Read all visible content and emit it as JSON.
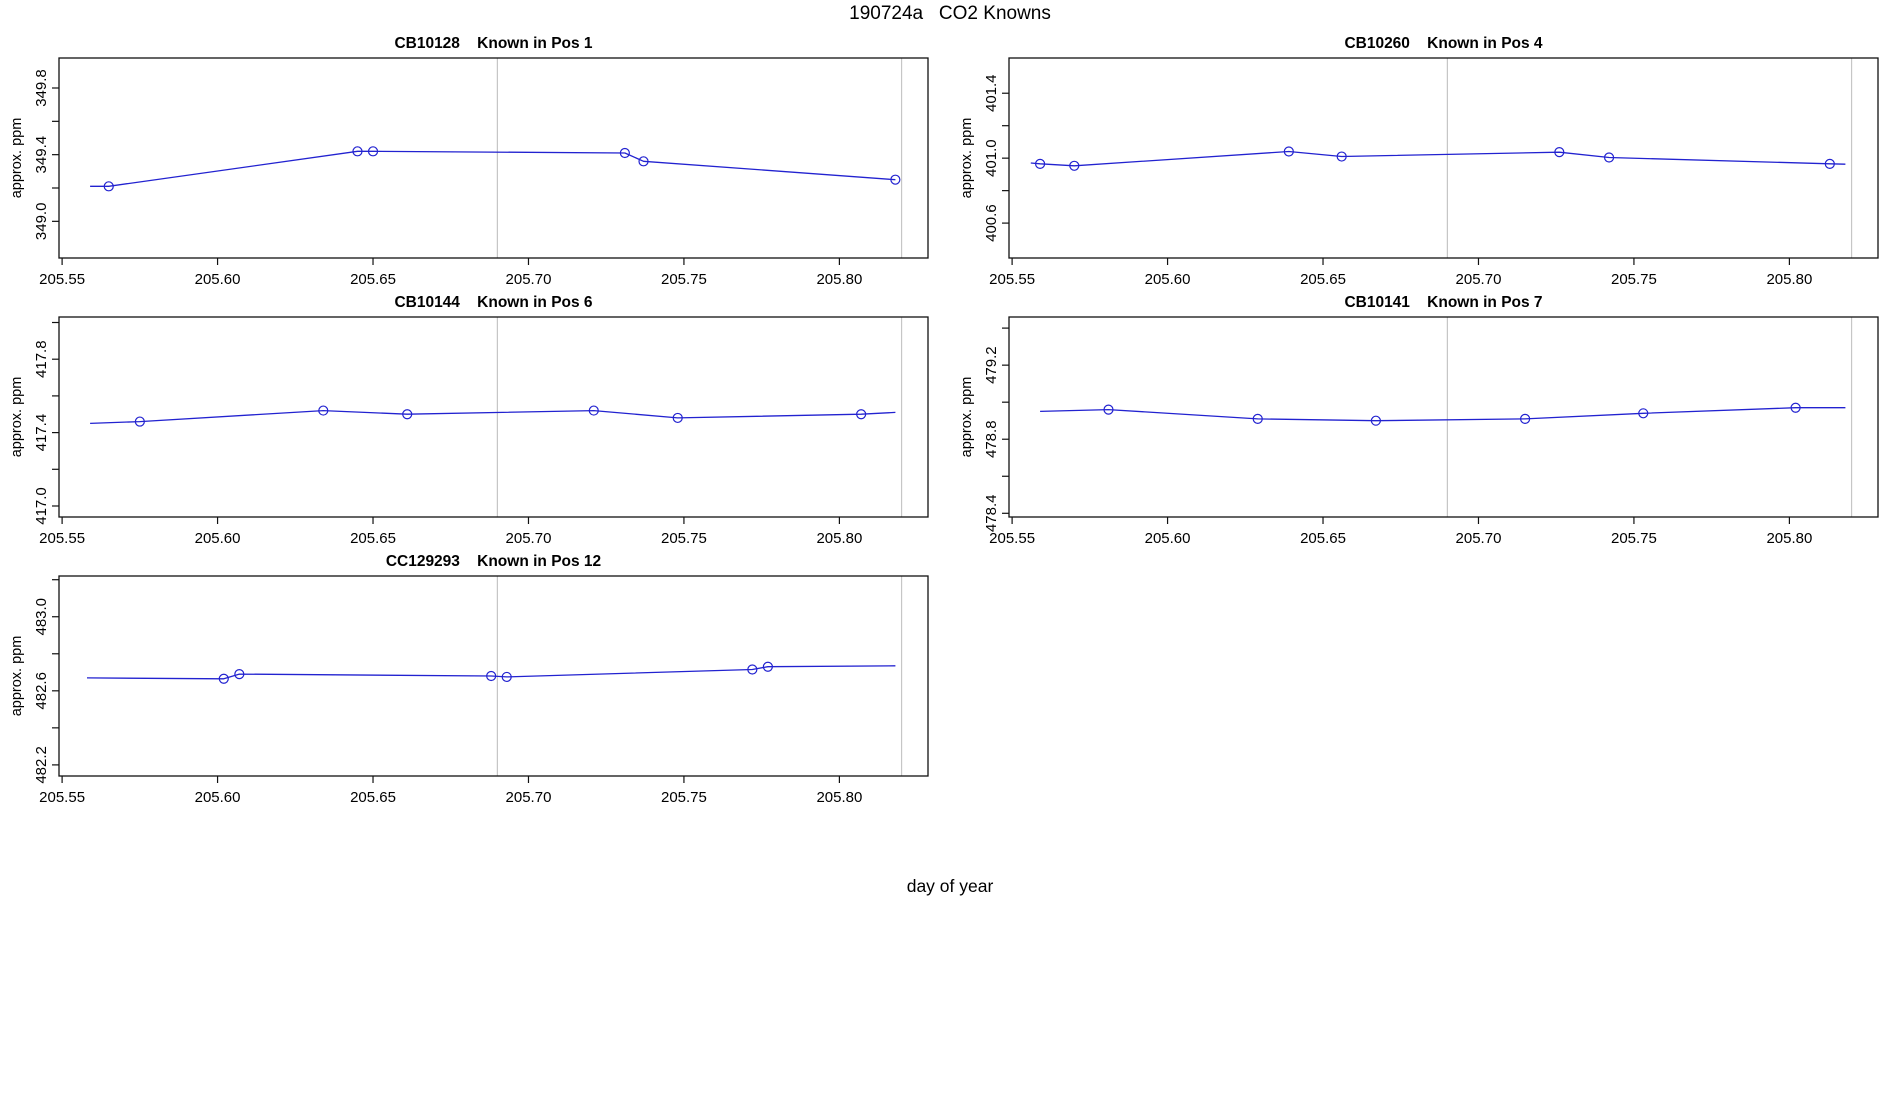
{
  "header": {
    "title": "190724a   CO2 Knowns"
  },
  "footer": {
    "xlabel": "day of year"
  },
  "axis": {
    "ylabel": "approx. ppm",
    "xtick_labels": [
      "205.55",
      "205.60",
      "205.65",
      "205.70",
      "205.75",
      "205.80"
    ]
  },
  "colors": {
    "line": "#2222d0",
    "marker": "#2222d0",
    "vline": "#c6c6c6",
    "axis": "#111111",
    "text": "#000000",
    "background": "#ffffff"
  },
  "chart_data": [
    {
      "type": "line",
      "id": "CB10128",
      "position_label": "Known in Pos 1",
      "title": "CB10128    Known in Pos 1",
      "xlabel": "day of year",
      "ylabel": "approx. ppm",
      "xlim": [
        205.549,
        205.8285
      ],
      "ylim": [
        348.78,
        349.98
      ],
      "xticks": [
        205.55,
        205.6,
        205.65,
        205.7,
        205.75,
        205.8
      ],
      "yticks": [
        349.0,
        349.2,
        349.4,
        349.6,
        349.8
      ],
      "yticks_labeled": [
        349.0,
        349.4,
        349.8
      ],
      "vlines": [
        205.69,
        205.82
      ],
      "line": [
        [
          205.559,
          349.21
        ],
        [
          205.565,
          349.21
        ],
        [
          205.645,
          349.42
        ],
        [
          205.65,
          349.42
        ],
        [
          205.731,
          349.41
        ],
        [
          205.737,
          349.36
        ],
        [
          205.818,
          349.25
        ]
      ],
      "markers": [
        [
          205.565,
          349.21
        ],
        [
          205.645,
          349.42
        ],
        [
          205.65,
          349.42
        ],
        [
          205.731,
          349.41
        ],
        [
          205.737,
          349.36
        ],
        [
          205.818,
          349.25
        ]
      ]
    },
    {
      "type": "line",
      "id": "CB10260",
      "position_label": "Known in Pos 4",
      "title": "CB10260    Known in Pos 4",
      "xlabel": "day of year",
      "ylabel": "approx. ppm",
      "xlim": [
        205.549,
        205.8285
      ],
      "ylim": [
        400.385,
        401.617
      ],
      "xticks": [
        205.55,
        205.6,
        205.65,
        205.7,
        205.75,
        205.8
      ],
      "yticks": [
        400.6,
        400.8,
        401.0,
        401.2,
        401.4
      ],
      "yticks_labeled": [
        400.6,
        401.0,
        401.4
      ],
      "vlines": [
        205.69,
        205.82
      ],
      "line": [
        [
          205.556,
          400.97
        ],
        [
          205.559,
          400.965
        ],
        [
          205.57,
          400.953
        ],
        [
          205.639,
          401.041
        ],
        [
          205.656,
          401.01
        ],
        [
          205.726,
          401.037
        ],
        [
          205.742,
          401.004
        ],
        [
          205.813,
          400.965
        ],
        [
          205.818,
          400.963
        ]
      ],
      "markers": [
        [
          205.559,
          400.965
        ],
        [
          205.57,
          400.953
        ],
        [
          205.639,
          401.041
        ],
        [
          205.656,
          401.01
        ],
        [
          205.726,
          401.037
        ],
        [
          205.742,
          401.004
        ],
        [
          205.813,
          400.965
        ]
      ]
    },
    {
      "type": "line",
      "id": "CB10144",
      "position_label": "Known in Pos 6",
      "title": "CB10144    Known in Pos 6",
      "xlabel": "day of year",
      "ylabel": "approx. ppm",
      "xlim": [
        205.549,
        205.8285
      ],
      "ylim": [
        416.94,
        418.03
      ],
      "xticks": [
        205.55,
        205.6,
        205.65,
        205.7,
        205.75,
        205.8
      ],
      "yticks": [
        417.0,
        417.2,
        417.4,
        417.6,
        417.8,
        418.0
      ],
      "yticks_labeled": [
        417.0,
        417.4,
        417.8
      ],
      "vlines": [
        205.69,
        205.82
      ],
      "line": [
        [
          205.559,
          417.45
        ],
        [
          205.575,
          417.46
        ],
        [
          205.634,
          417.52
        ],
        [
          205.661,
          417.5
        ],
        [
          205.721,
          417.52
        ],
        [
          205.748,
          417.48
        ],
        [
          205.807,
          417.5
        ],
        [
          205.818,
          417.51
        ]
      ],
      "markers": [
        [
          205.575,
          417.46
        ],
        [
          205.634,
          417.52
        ],
        [
          205.661,
          417.5
        ],
        [
          205.721,
          417.52
        ],
        [
          205.748,
          417.48
        ],
        [
          205.807,
          417.5
        ]
      ]
    },
    {
      "type": "line",
      "id": "CB10141",
      "position_label": "Known in Pos 7",
      "title": "CB10141    Known in Pos 7",
      "xlabel": "day of year",
      "ylabel": "approx. ppm",
      "xlim": [
        205.549,
        205.8285
      ],
      "ylim": [
        478.38,
        479.46
      ],
      "xticks": [
        205.55,
        205.6,
        205.65,
        205.7,
        205.75,
        205.8
      ],
      "yticks": [
        478.4,
        478.6,
        478.8,
        479.0,
        479.2,
        479.4
      ],
      "yticks_labeled": [
        478.4,
        478.8,
        479.2
      ],
      "vlines": [
        205.69,
        205.82
      ],
      "line": [
        [
          205.559,
          478.95
        ],
        [
          205.581,
          478.96
        ],
        [
          205.629,
          478.91
        ],
        [
          205.667,
          478.9
        ],
        [
          205.715,
          478.91
        ],
        [
          205.753,
          478.94
        ],
        [
          205.802,
          478.97
        ],
        [
          205.818,
          478.97
        ]
      ],
      "markers": [
        [
          205.581,
          478.96
        ],
        [
          205.629,
          478.91
        ],
        [
          205.667,
          478.9
        ],
        [
          205.715,
          478.91
        ],
        [
          205.753,
          478.94
        ],
        [
          205.802,
          478.97
        ]
      ]
    },
    {
      "type": "line",
      "id": "CC129293",
      "position_label": "Known in Pos 12",
      "title": "CC129293    Known in Pos 12",
      "xlabel": "day of year",
      "ylabel": "approx. ppm",
      "xlim": [
        205.549,
        205.8285
      ],
      "ylim": [
        482.14,
        483.22
      ],
      "xticks": [
        205.55,
        205.6,
        205.65,
        205.7,
        205.75,
        205.8
      ],
      "yticks": [
        482.2,
        482.4,
        482.6,
        482.8,
        483.0,
        483.2
      ],
      "yticks_labeled": [
        482.2,
        482.6,
        483.0
      ],
      "vlines": [
        205.69,
        205.82
      ],
      "line": [
        [
          205.558,
          482.67
        ],
        [
          205.602,
          482.665
        ],
        [
          205.607,
          482.69
        ],
        [
          205.688,
          482.68
        ],
        [
          205.693,
          482.675
        ],
        [
          205.772,
          482.715
        ],
        [
          205.777,
          482.73
        ],
        [
          205.818,
          482.735
        ]
      ],
      "markers": [
        [
          205.602,
          482.665
        ],
        [
          205.607,
          482.69
        ],
        [
          205.688,
          482.68
        ],
        [
          205.693,
          482.675
        ],
        [
          205.772,
          482.715
        ],
        [
          205.777,
          482.73
        ]
      ]
    }
  ]
}
